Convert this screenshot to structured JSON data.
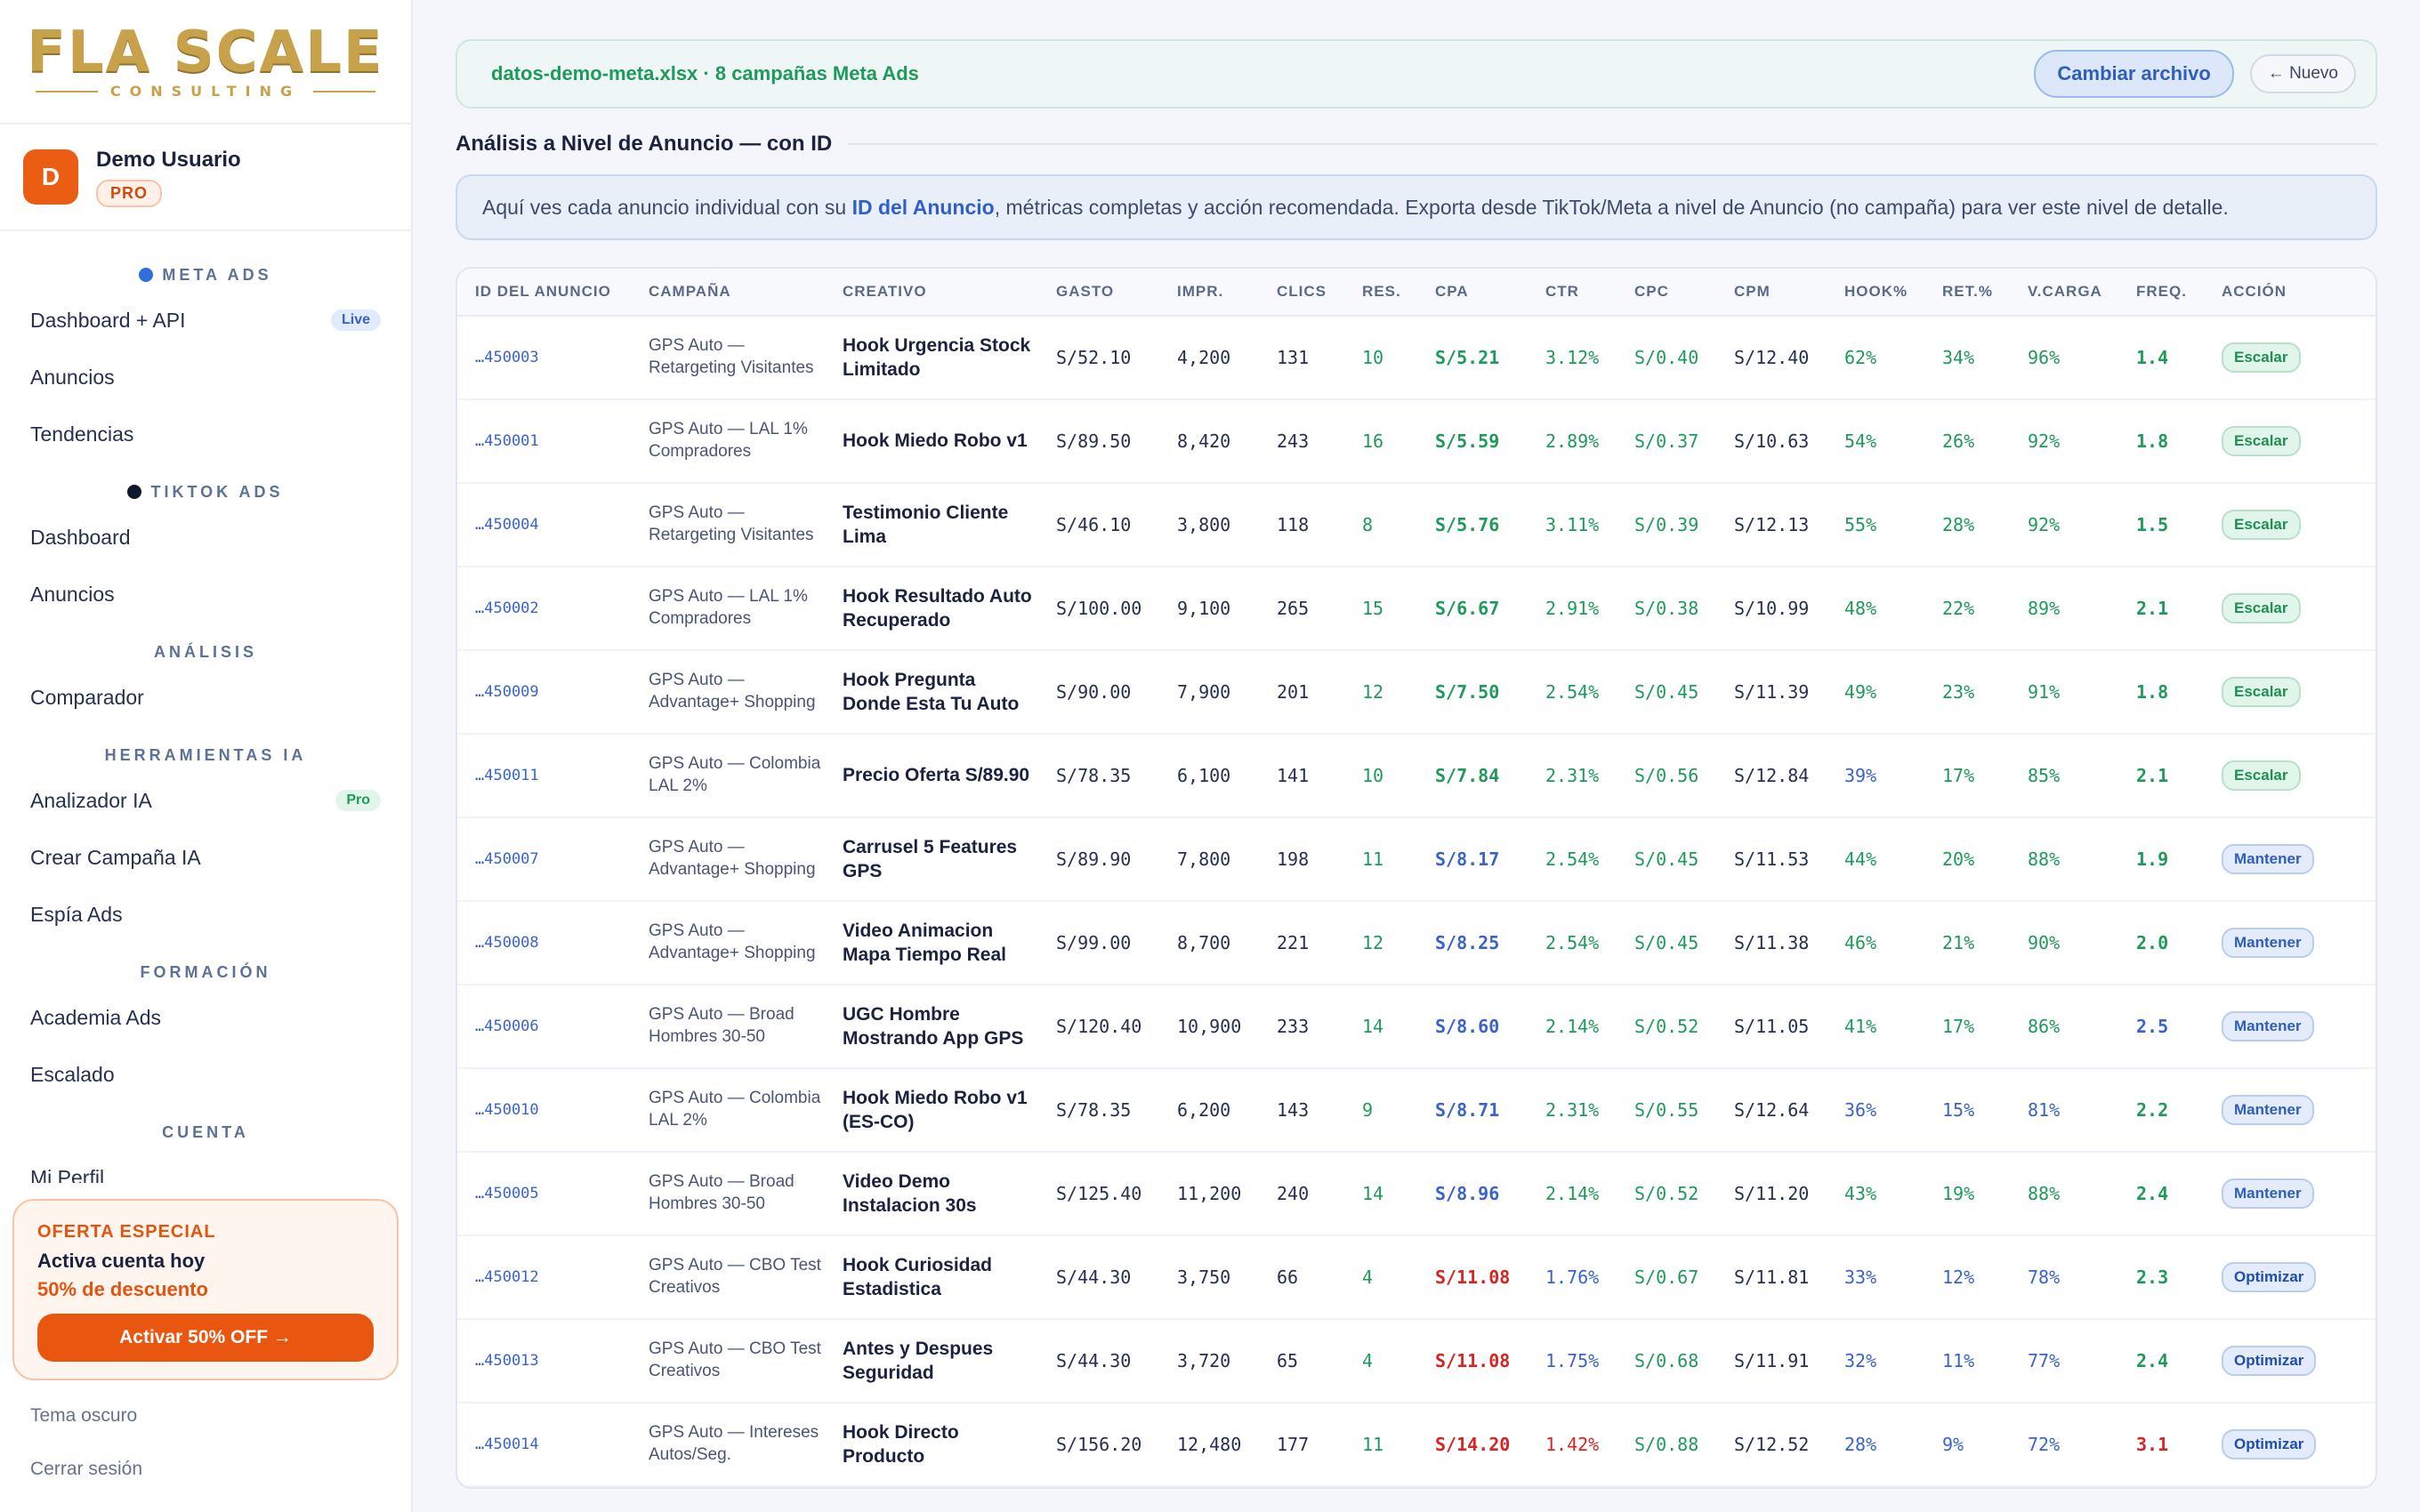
{
  "brand": {
    "logo_main": "FLA SCALE",
    "logo_sub": "CONSULTING"
  },
  "user": {
    "initial": "D",
    "name": "Demo Usuario",
    "plan": "PRO"
  },
  "nav": [
    {
      "type": "section",
      "label": "META ADS",
      "dot": "#2f6fdc"
    },
    {
      "type": "item",
      "label": "Dashboard + API",
      "tag": "Live",
      "tag_kind": "live"
    },
    {
      "type": "item",
      "label": "Anuncios"
    },
    {
      "type": "item",
      "label": "Tendencias"
    },
    {
      "type": "section",
      "label": "TIKTOK ADS",
      "dot": "#11182c"
    },
    {
      "type": "item",
      "label": "Dashboard"
    },
    {
      "type": "item",
      "label": "Anuncios"
    },
    {
      "type": "section",
      "label": "ANÁLISIS"
    },
    {
      "type": "item",
      "label": "Comparador"
    },
    {
      "type": "section",
      "label": "HERRAMIENTAS IA"
    },
    {
      "type": "item",
      "label": "Analizador IA",
      "tag": "Pro",
      "tag_kind": "pro"
    },
    {
      "type": "item",
      "label": "Crear Campaña IA"
    },
    {
      "type": "item",
      "label": "Espía Ads"
    },
    {
      "type": "section",
      "label": "FORMACIÓN"
    },
    {
      "type": "item",
      "label": "Academia Ads"
    },
    {
      "type": "item",
      "label": "Escalado"
    },
    {
      "type": "section",
      "label": "CUENTA"
    },
    {
      "type": "item",
      "label": "Mi Perfil"
    }
  ],
  "promo": {
    "kicker": "OFERTA ESPECIAL",
    "title": "Activa cuenta hoy",
    "discount": "50% de descuento",
    "button": "Activar 50% OFF →"
  },
  "footer": {
    "theme": "Tema oscuro",
    "logout": "Cerrar sesión"
  },
  "file_bar": {
    "file": "datos-demo-meta.xlsx · 8 campañas Meta Ads",
    "change_button": "Cambiar archivo",
    "new_button": "← Nuevo"
  },
  "section_title": "Análisis a Nivel de Anuncio — con ID",
  "info": {
    "pre": "Aquí ves cada anuncio individual con su ",
    "highlight": "ID del Anuncio",
    "post": ", métricas completas y acción recomendada. Exporta desde TikTok/Meta a nivel de Anuncio (no campaña) para ver este nivel de detalle."
  },
  "table": {
    "columns": [
      "ID DEL ANUNCIO",
      "CAMPAÑA",
      "CREATIVO",
      "GASTO",
      "IMPR.",
      "CLICS",
      "RES.",
      "CPA",
      "CTR",
      "CPC",
      "CPM",
      "HOOK%",
      "RET.%",
      "V.CARGA",
      "FREQ.",
      "ACCIÓN"
    ],
    "colors": {
      "green": "#1f9a5b",
      "blue": "#3a64c9",
      "red": "#d92424"
    },
    "rows": [
      {
        "id": "…450003",
        "campaign": "GPS Auto — Retargeting Visitantes",
        "creative": "Hook Urgencia Stock Limitado",
        "spend": "S/52.10",
        "impr": "4,200",
        "clicks": "131",
        "res": "10",
        "cpa": "S/5.21",
        "ctr": "3.12%",
        "cpc": "S/0.40",
        "cpm": "S/12.40",
        "hook": "62%",
        "ret": "34%",
        "vcarga": "96%",
        "freq": "1.4",
        "action": "Escalar",
        "tone": {
          "cpa": "g",
          "ctr": "g",
          "cpc": "g",
          "hook": "g",
          "ret": "g",
          "vcarga": "g",
          "freq": "g"
        }
      },
      {
        "id": "…450001",
        "campaign": "GPS Auto — LAL 1% Compradores",
        "creative": "Hook Miedo Robo v1",
        "spend": "S/89.50",
        "impr": "8,420",
        "clicks": "243",
        "res": "16",
        "cpa": "S/5.59",
        "ctr": "2.89%",
        "cpc": "S/0.37",
        "cpm": "S/10.63",
        "hook": "54%",
        "ret": "26%",
        "vcarga": "92%",
        "freq": "1.8",
        "action": "Escalar",
        "tone": {
          "cpa": "g",
          "ctr": "g",
          "cpc": "g",
          "hook": "g",
          "ret": "g",
          "vcarga": "g",
          "freq": "g"
        }
      },
      {
        "id": "…450004",
        "campaign": "GPS Auto — Retargeting Visitantes",
        "creative": "Testimonio Cliente Lima",
        "spend": "S/46.10",
        "impr": "3,800",
        "clicks": "118",
        "res": "8",
        "cpa": "S/5.76",
        "ctr": "3.11%",
        "cpc": "S/0.39",
        "cpm": "S/12.13",
        "hook": "55%",
        "ret": "28%",
        "vcarga": "92%",
        "freq": "1.5",
        "action": "Escalar",
        "tone": {
          "cpa": "g",
          "ctr": "g",
          "cpc": "g",
          "hook": "g",
          "ret": "g",
          "vcarga": "g",
          "freq": "g"
        }
      },
      {
        "id": "…450002",
        "campaign": "GPS Auto — LAL 1% Compradores",
        "creative": "Hook Resultado Auto Recuperado",
        "spend": "S/100.00",
        "impr": "9,100",
        "clicks": "265",
        "res": "15",
        "cpa": "S/6.67",
        "ctr": "2.91%",
        "cpc": "S/0.38",
        "cpm": "S/10.99",
        "hook": "48%",
        "ret": "22%",
        "vcarga": "89%",
        "freq": "2.1",
        "action": "Escalar",
        "tone": {
          "cpa": "g",
          "ctr": "g",
          "cpc": "g",
          "hook": "g",
          "ret": "g",
          "vcarga": "g",
          "freq": "g"
        }
      },
      {
        "id": "…450009",
        "campaign": "GPS Auto — Advantage+ Shopping",
        "creative": "Hook Pregunta Donde Esta Tu Auto",
        "spend": "S/90.00",
        "impr": "7,900",
        "clicks": "201",
        "res": "12",
        "cpa": "S/7.50",
        "ctr": "2.54%",
        "cpc": "S/0.45",
        "cpm": "S/11.39",
        "hook": "49%",
        "ret": "23%",
        "vcarga": "91%",
        "freq": "1.8",
        "action": "Escalar",
        "tone": {
          "cpa": "g",
          "ctr": "g",
          "cpc": "g",
          "hook": "g",
          "ret": "g",
          "vcarga": "g",
          "freq": "g"
        }
      },
      {
        "id": "…450011",
        "campaign": "GPS Auto — Colombia LAL 2%",
        "creative": "Precio Oferta S/89.90",
        "spend": "S/78.35",
        "impr": "6,100",
        "clicks": "141",
        "res": "10",
        "cpa": "S/7.84",
        "ctr": "2.31%",
        "cpc": "S/0.56",
        "cpm": "S/12.84",
        "hook": "39%",
        "ret": "17%",
        "vcarga": "85%",
        "freq": "2.1",
        "action": "Escalar",
        "tone": {
          "cpa": "g",
          "ctr": "g",
          "cpc": "g",
          "hook": "b",
          "ret": "g",
          "vcarga": "g",
          "freq": "g"
        }
      },
      {
        "id": "…450007",
        "campaign": "GPS Auto — Advantage+ Shopping",
        "creative": "Carrusel 5 Features GPS",
        "spend": "S/89.90",
        "impr": "7,800",
        "clicks": "198",
        "res": "11",
        "cpa": "S/8.17",
        "ctr": "2.54%",
        "cpc": "S/0.45",
        "cpm": "S/11.53",
        "hook": "44%",
        "ret": "20%",
        "vcarga": "88%",
        "freq": "1.9",
        "action": "Mantener",
        "tone": {
          "cpa": "b",
          "ctr": "g",
          "cpc": "g",
          "hook": "g",
          "ret": "g",
          "vcarga": "g",
          "freq": "g"
        }
      },
      {
        "id": "…450008",
        "campaign": "GPS Auto — Advantage+ Shopping",
        "creative": "Video Animacion Mapa Tiempo Real",
        "spend": "S/99.00",
        "impr": "8,700",
        "clicks": "221",
        "res": "12",
        "cpa": "S/8.25",
        "ctr": "2.54%",
        "cpc": "S/0.45",
        "cpm": "S/11.38",
        "hook": "46%",
        "ret": "21%",
        "vcarga": "90%",
        "freq": "2.0",
        "action": "Mantener",
        "tone": {
          "cpa": "b",
          "ctr": "g",
          "cpc": "g",
          "hook": "g",
          "ret": "g",
          "vcarga": "g",
          "freq": "g"
        }
      },
      {
        "id": "…450006",
        "campaign": "GPS Auto — Broad Hombres 30-50",
        "creative": "UGC Hombre Mostrando App GPS",
        "spend": "S/120.40",
        "impr": "10,900",
        "clicks": "233",
        "res": "14",
        "cpa": "S/8.60",
        "ctr": "2.14%",
        "cpc": "S/0.52",
        "cpm": "S/11.05",
        "hook": "41%",
        "ret": "17%",
        "vcarga": "86%",
        "freq": "2.5",
        "action": "Mantener",
        "tone": {
          "cpa": "b",
          "ctr": "g",
          "cpc": "g",
          "hook": "g",
          "ret": "g",
          "vcarga": "g",
          "freq": "b"
        }
      },
      {
        "id": "…450010",
        "campaign": "GPS Auto — Colombia LAL 2%",
        "creative": "Hook Miedo Robo v1 (ES-CO)",
        "spend": "S/78.35",
        "impr": "6,200",
        "clicks": "143",
        "res": "9",
        "cpa": "S/8.71",
        "ctr": "2.31%",
        "cpc": "S/0.55",
        "cpm": "S/12.64",
        "hook": "36%",
        "ret": "15%",
        "vcarga": "81%",
        "freq": "2.2",
        "action": "Mantener",
        "tone": {
          "cpa": "b",
          "ctr": "g",
          "cpc": "g",
          "hook": "b",
          "ret": "b",
          "vcarga": "b",
          "freq": "g"
        }
      },
      {
        "id": "…450005",
        "campaign": "GPS Auto — Broad Hombres 30-50",
        "creative": "Video Demo Instalacion 30s",
        "spend": "S/125.40",
        "impr": "11,200",
        "clicks": "240",
        "res": "14",
        "cpa": "S/8.96",
        "ctr": "2.14%",
        "cpc": "S/0.52",
        "cpm": "S/11.20",
        "hook": "43%",
        "ret": "19%",
        "vcarga": "88%",
        "freq": "2.4",
        "action": "Mantener",
        "tone": {
          "cpa": "b",
          "ctr": "g",
          "cpc": "g",
          "hook": "g",
          "ret": "g",
          "vcarga": "g",
          "freq": "g"
        }
      },
      {
        "id": "…450012",
        "campaign": "GPS Auto — CBO Test Creativos",
        "creative": "Hook Curiosidad Estadistica",
        "spend": "S/44.30",
        "impr": "3,750",
        "clicks": "66",
        "res": "4",
        "cpa": "S/11.08",
        "ctr": "1.76%",
        "cpc": "S/0.67",
        "cpm": "S/11.81",
        "hook": "33%",
        "ret": "12%",
        "vcarga": "78%",
        "freq": "2.3",
        "action": "Optimizar",
        "tone": {
          "cpa": "rd",
          "ctr": "b",
          "cpc": "g",
          "hook": "b",
          "ret": "b",
          "vcarga": "b",
          "freq": "g"
        }
      },
      {
        "id": "…450013",
        "campaign": "GPS Auto — CBO Test Creativos",
        "creative": "Antes y Despues Seguridad",
        "spend": "S/44.30",
        "impr": "3,720",
        "clicks": "65",
        "res": "4",
        "cpa": "S/11.08",
        "ctr": "1.75%",
        "cpc": "S/0.68",
        "cpm": "S/11.91",
        "hook": "32%",
        "ret": "11%",
        "vcarga": "77%",
        "freq": "2.4",
        "action": "Optimizar",
        "tone": {
          "cpa": "rd",
          "ctr": "b",
          "cpc": "g",
          "hook": "b",
          "ret": "b",
          "vcarga": "b",
          "freq": "g"
        }
      },
      {
        "id": "…450014",
        "campaign": "GPS Auto — Intereses Autos/Seg.",
        "creative": "Hook Directo Producto",
        "spend": "S/156.20",
        "impr": "12,480",
        "clicks": "177",
        "res": "11",
        "cpa": "S/14.20",
        "ctr": "1.42%",
        "cpc": "S/0.88",
        "cpm": "S/12.52",
        "hook": "28%",
        "ret": "9%",
        "vcarga": "72%",
        "freq": "3.1",
        "action": "Optimizar",
        "tone": {
          "cpa": "rd",
          "ctr": "rd",
          "cpc": "g",
          "hook": "b",
          "ret": "b",
          "vcarga": "b",
          "freq": "rd"
        }
      }
    ]
  }
}
